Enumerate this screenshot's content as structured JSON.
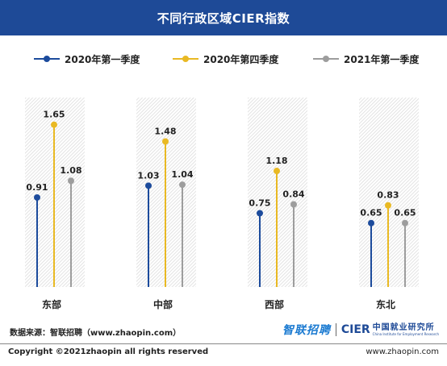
{
  "header": {
    "title": "不同行政区域CIER指数"
  },
  "colors": {
    "header_bg": "#1e4a97",
    "series": [
      "#1c4b9c",
      "#e9b923",
      "#9d9d9d"
    ],
    "stripe": "#e9e9e9"
  },
  "chart_data": {
    "type": "lollipop",
    "title": "不同行政区域CIER指数",
    "categories": [
      "东部",
      "中部",
      "西部",
      "东北"
    ],
    "series": [
      {
        "name": "2020年第一季度",
        "values": [
          0.91,
          1.03,
          0.75,
          0.65
        ]
      },
      {
        "name": "2020年第四季度",
        "values": [
          1.65,
          1.48,
          1.18,
          0.83
        ]
      },
      {
        "name": "2021年第一季度",
        "values": [
          1.08,
          1.04,
          0.84,
          0.65
        ]
      }
    ],
    "legend_position": "top",
    "grid": false
  },
  "footer": {
    "source": "数据来源：智联招聘（www.zhaopin.com）",
    "copyright": "Copyright ©2021zhaopin all rights reserved",
    "website": "www.zhaopin.com",
    "logo_zhaopin": "智联招聘",
    "logo_cier": "CIER",
    "logo_institute_cn": "中国就业研究所",
    "logo_institute_en": "China Institute for Employment Research"
  }
}
